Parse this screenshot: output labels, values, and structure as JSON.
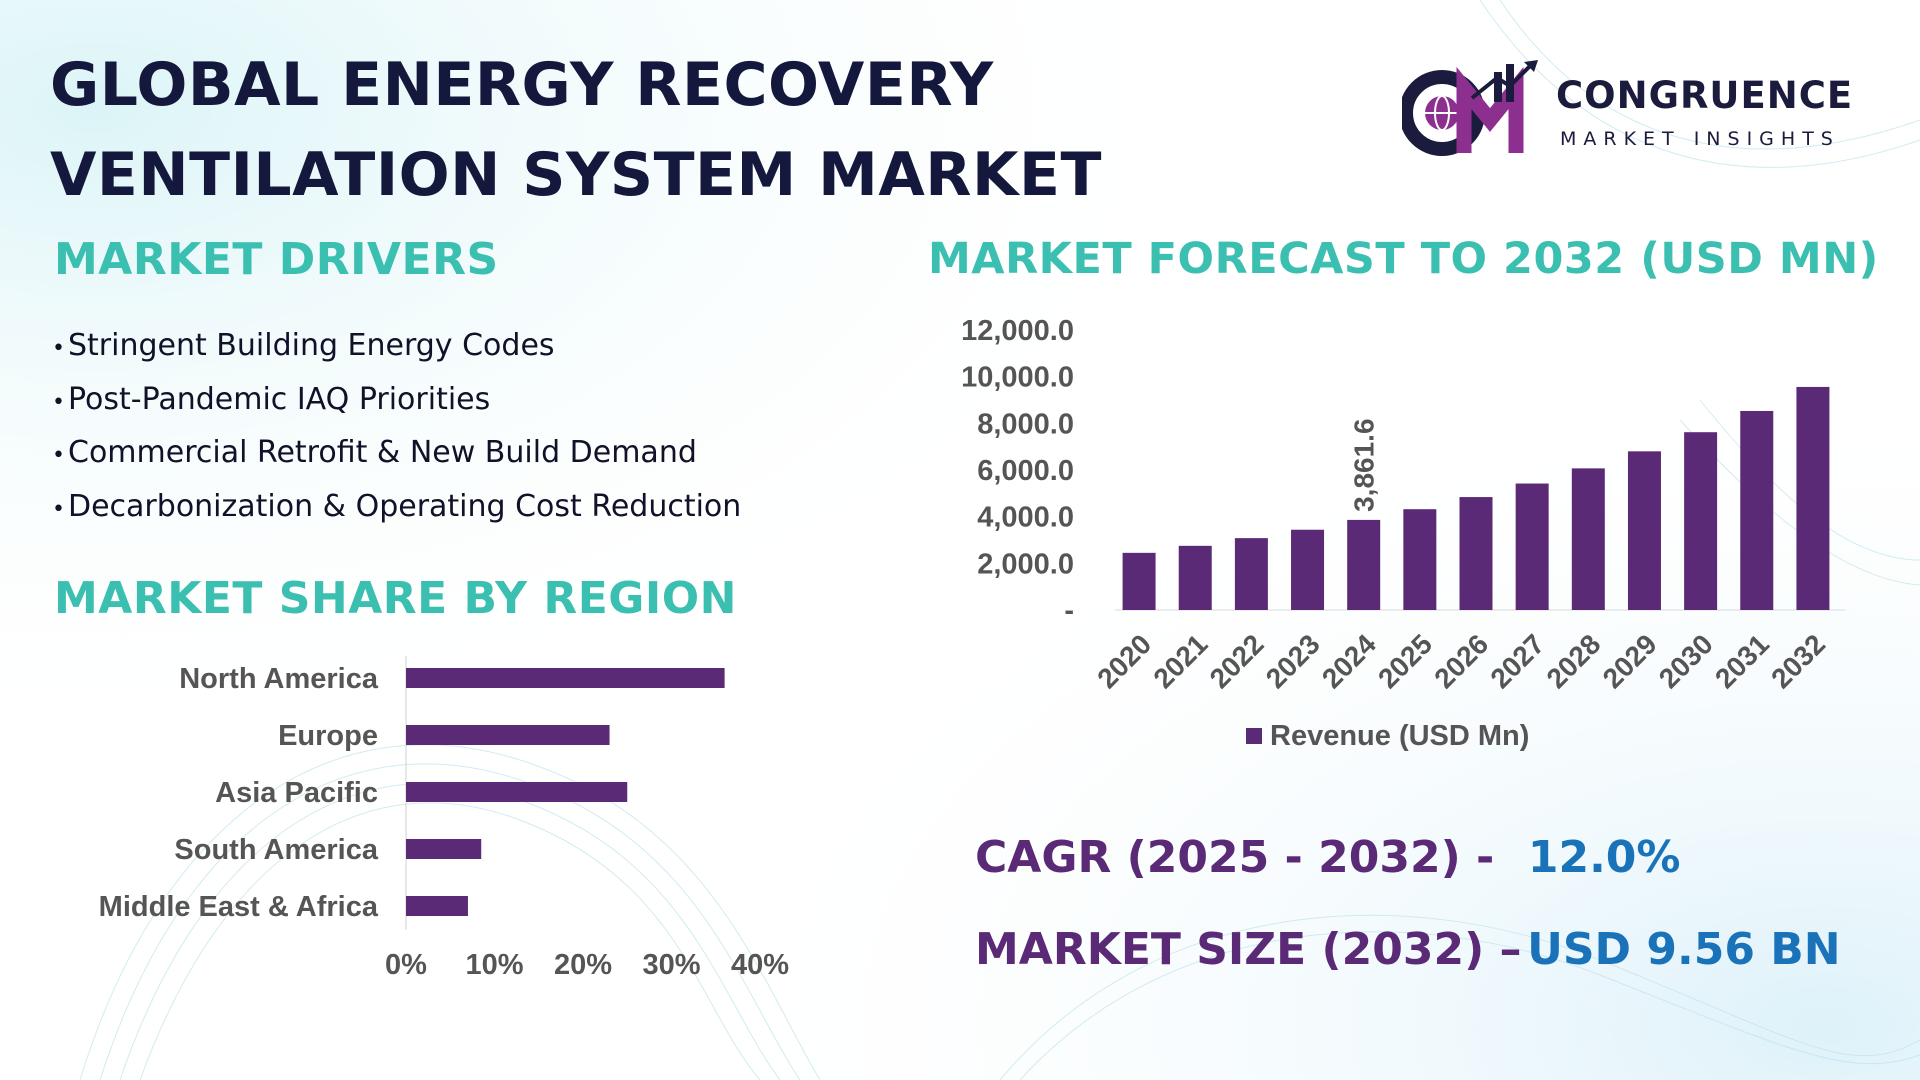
{
  "title": {
    "line1": "GLOBAL ENERGY RECOVERY",
    "line2": "VENTILATION SYSTEM MARKET"
  },
  "logo": {
    "mark": "CM",
    "name": "CONGRUENCE",
    "tagline": "MARKET INSIGHTS"
  },
  "colors": {
    "teal_heading": "#3bbfb0",
    "bar_purple": "#5b2a76",
    "stat_label": "#5b2a76",
    "stat_value": "#1a73b8",
    "title_navy": "#15183d"
  },
  "drivers": {
    "heading": "MARKET DRIVERS",
    "items": [
      "Stringent Building Energy Codes",
      "Post-Pandemic IAQ Priorities",
      "Commercial Retrofit & New Build Demand",
      "Decarbonization & Operating Cost Reduction"
    ]
  },
  "region": {
    "heading": "MARKET SHARE BY REGION"
  },
  "forecast": {
    "heading": "MARKET FORECAST TO 2032 (USD MN)"
  },
  "stats": {
    "cagr_label": "CAGR (2025 - 2032) -",
    "cagr_value": "12.0%",
    "size_label": "MARKET SIZE (2032) –",
    "size_value": "USD 9.56 BN"
  },
  "chart_data": [
    {
      "type": "bar",
      "orientation": "horizontal",
      "title": "MARKET SHARE BY REGION",
      "categories": [
        "North America",
        "Europe",
        "Asia Pacific",
        "South America",
        "Middle East & Africa"
      ],
      "values": [
        36,
        23,
        25,
        8.5,
        7
      ],
      "xlim": [
        0,
        40
      ],
      "xticks": [
        "0%",
        "10%",
        "20%",
        "30%",
        "40%"
      ],
      "grid": false
    },
    {
      "type": "bar",
      "title": "MARKET FORECAST TO 2032 (USD MN)",
      "categories": [
        "2020",
        "2021",
        "2022",
        "2023",
        "2024",
        "2025",
        "2026",
        "2027",
        "2028",
        "2029",
        "2030",
        "2031",
        "2032"
      ],
      "series": [
        {
          "name": "Revenue (USD Mn)",
          "values": [
            2450,
            2750,
            3080,
            3440,
            3861.6,
            4320,
            4840,
            5420,
            6070,
            6800,
            7620,
            8530,
            9560
          ]
        }
      ],
      "data_label": {
        "category": "2024",
        "text": "3,861.6"
      },
      "ylim": [
        0,
        12000
      ],
      "yticks": [
        "-",
        "2,000.0",
        "4,000.0",
        "6,000.0",
        "8,000.0",
        "10,000.0",
        "12,000.0"
      ],
      "legend": "bottom",
      "grid": false
    }
  ]
}
